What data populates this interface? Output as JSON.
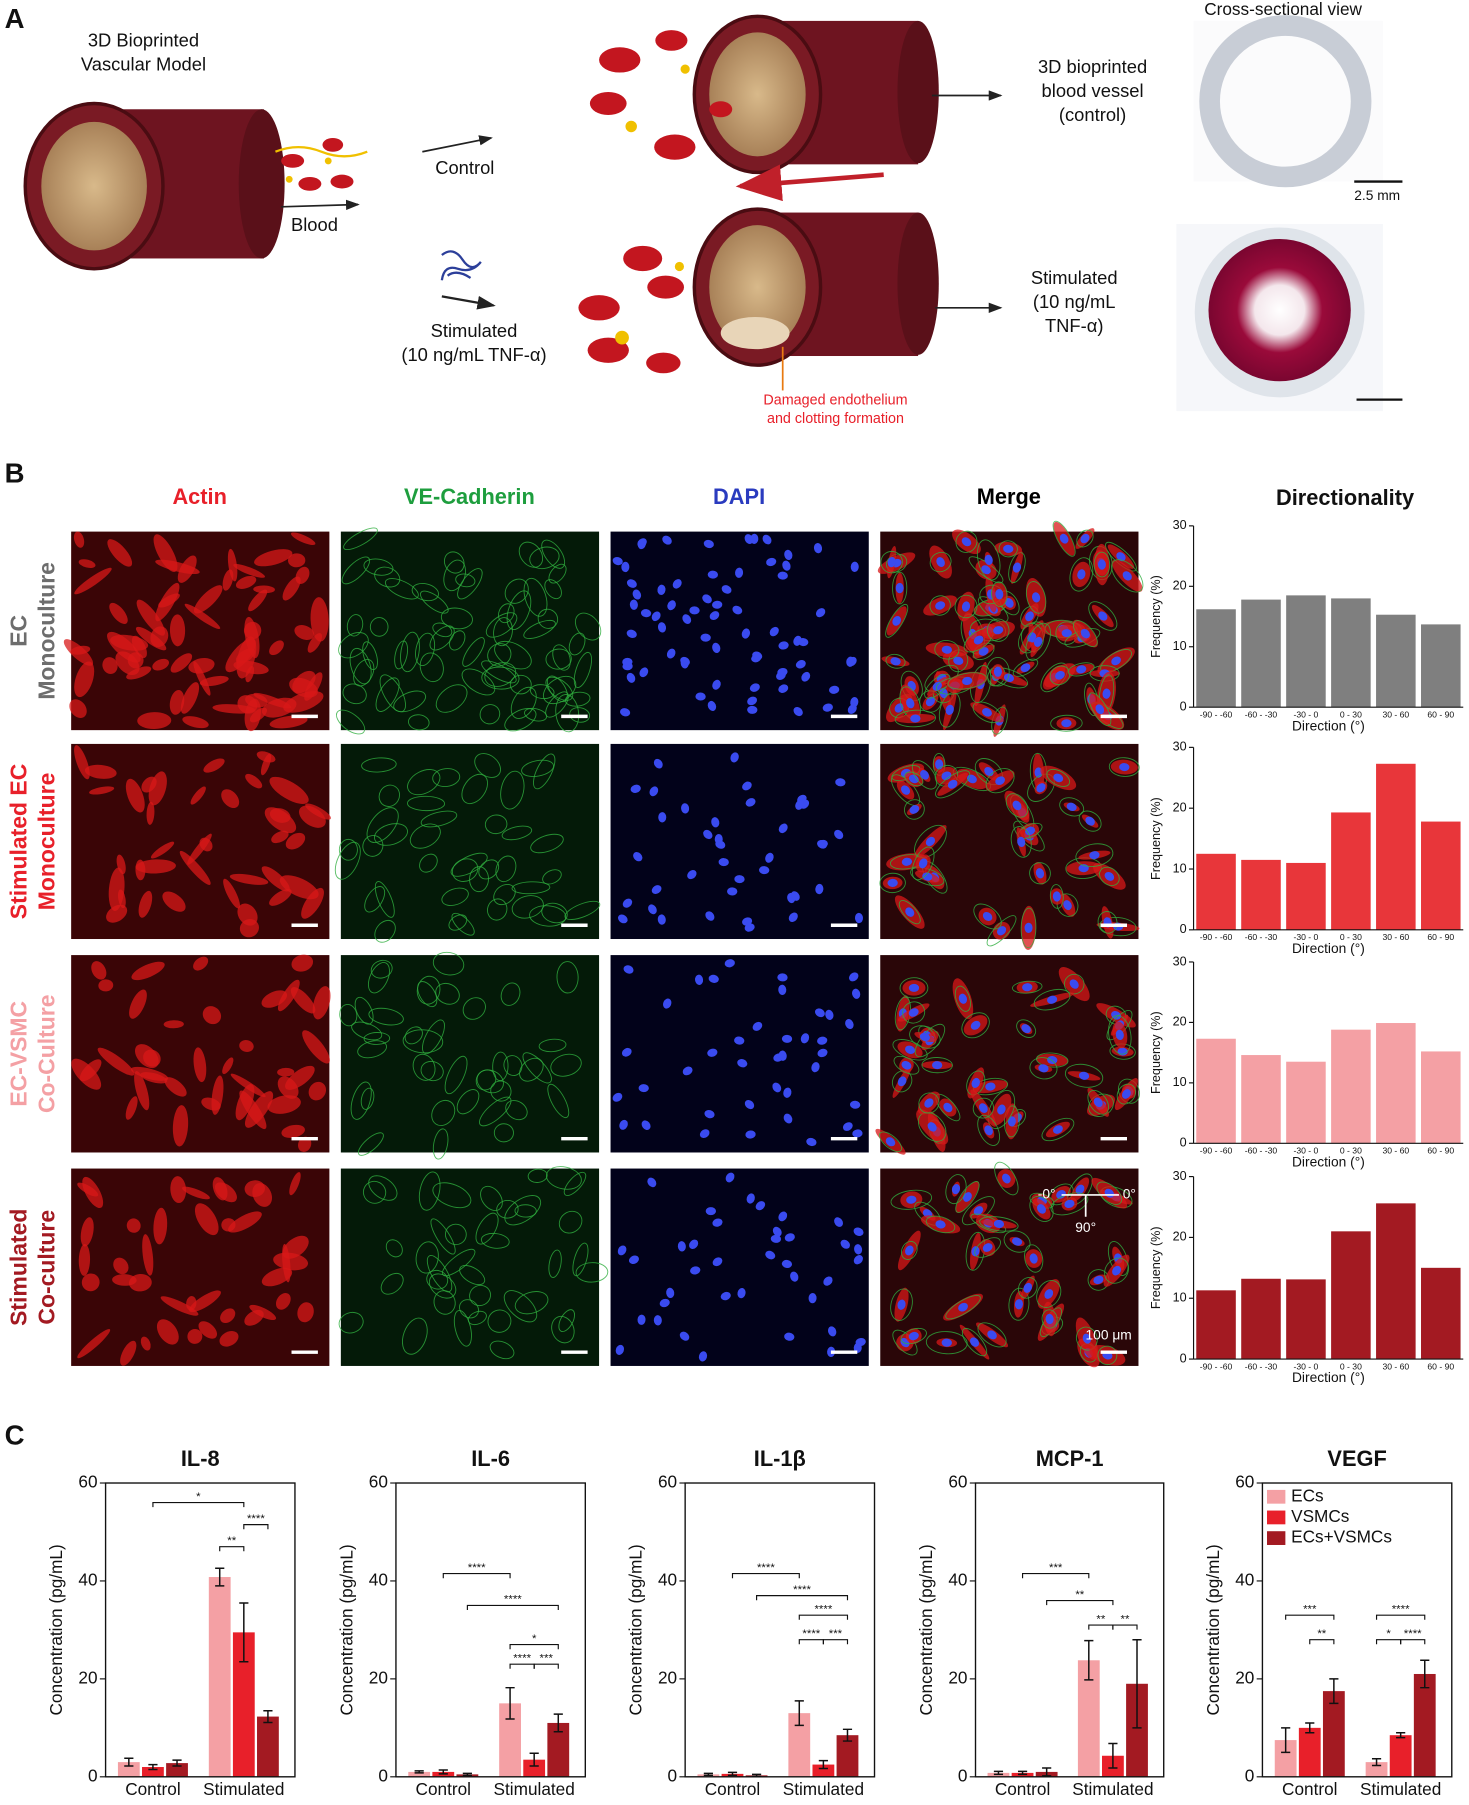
{
  "panel_a": {
    "label": "A",
    "model_title": [
      "3D Bioprinted",
      "Vascular Model"
    ],
    "blood": "Blood",
    "control": "Control",
    "stimulated": [
      "Stimulated",
      "(10 ng/mL TNF-α)"
    ],
    "control_result": [
      "3D bioprinted",
      "blood vessel",
      "(control)"
    ],
    "stimulated_result": [
      "Stimulated",
      "(10 ng/mL",
      "TNF-α)"
    ],
    "damage_note": [
      "Damaged endothelium",
      "and clotting formation"
    ],
    "cross_section_title": "Cross-sectional view",
    "scale_bar": "2.5 mm"
  },
  "panel_b": {
    "label": "B",
    "columns": [
      "Actin",
      "VE-Cadherin",
      "DAPI",
      "Merge"
    ],
    "column_colors": [
      "#e8202a",
      "#1e9e3e",
      "#2a3bbf",
      "#000000"
    ],
    "directionality_title": "Directionality",
    "rows": [
      [
        "EC",
        "Monoculture"
      ],
      [
        "Stimulated EC",
        "Monoculture"
      ],
      [
        "EC-VSMC",
        "Co-Culture"
      ],
      [
        "Stimulated",
        "Co-culture"
      ]
    ],
    "row_colors": [
      "#6d6d6d",
      "#e8202a",
      "#f4a0a4",
      "#a31a22"
    ],
    "scale_bar": "100 μm",
    "orientation": [
      "-0°",
      "0°",
      "90°"
    ]
  },
  "panel_c": {
    "label": "C"
  },
  "chart_data": [
    {
      "type": "bar",
      "categories": [
        "-90 - -60",
        "-60 - -30",
        "-30 - 0",
        "0 - 30",
        "30 - 60",
        "60 - 90"
      ],
      "values": [
        16.2,
        17.8,
        18.5,
        18.0,
        15.3,
        13.7
      ],
      "color": "#7f7f7f",
      "ylim": [
        0,
        30
      ],
      "yticks": [
        0,
        10,
        20,
        30
      ],
      "x_label": "Direction (°)",
      "y_label": "Frequency (%)"
    },
    {
      "type": "bar",
      "categories": [
        "-90 - -60",
        "-60 - -30",
        "-30 - 0",
        "0 - 30",
        "30 - 60",
        "60 - 90"
      ],
      "values": [
        12.5,
        11.5,
        11.0,
        19.3,
        27.3,
        17.8
      ],
      "color": "#e8363a",
      "ylim": [
        0,
        30
      ],
      "yticks": [
        0,
        10,
        20,
        30
      ],
      "x_label": "Direction (°)",
      "y_label": "Frequency (%)"
    },
    {
      "type": "bar",
      "categories": [
        "-90 - -60",
        "-60 - -30",
        "-30 - 0",
        "0 - 30",
        "30 - 60",
        "60 - 90"
      ],
      "values": [
        17.3,
        14.6,
        13.5,
        18.8,
        19.9,
        15.2
      ],
      "color": "#f4a0a4",
      "ylim": [
        0,
        30
      ],
      "yticks": [
        0,
        10,
        20,
        30
      ],
      "x_label": "Direction (°)",
      "y_label": "Frequency (%)"
    },
    {
      "type": "bar",
      "categories": [
        "-90 - -60",
        "-60 - -30",
        "-30 - 0",
        "0 - 30",
        "30 - 60",
        "60 - 90"
      ],
      "values": [
        11.3,
        13.2,
        13.1,
        21.0,
        25.6,
        15.0
      ],
      "color": "#a31a22",
      "ylim": [
        0,
        30
      ],
      "yticks": [
        0,
        10,
        20,
        30
      ],
      "x_label": "Direction (°)",
      "y_label": "Frequency (%)"
    },
    {
      "type": "grouped_bar",
      "title": "IL-8",
      "categories": [
        "Control",
        "Stimulated"
      ],
      "series": [
        {
          "color": "#f4a0a4",
          "values": [
            3.0,
            40.8
          ],
          "errors": [
            0.8,
            1.8
          ]
        },
        {
          "color": "#e8202a",
          "values": [
            2.0,
            29.5
          ],
          "errors": [
            0.5,
            6.0
          ]
        },
        {
          "color": "#a31a22",
          "values": [
            2.8,
            12.3
          ],
          "errors": [
            0.6,
            1.2
          ]
        }
      ],
      "ylim": [
        0,
        60
      ],
      "yticks": [
        0,
        20,
        40,
        60
      ],
      "y_label": "Concentration (pg/mL)",
      "brackets": [
        {
          "label": "*",
          "y": 56,
          "from": [
            0,
            1
          ],
          "to": [
            1,
            1
          ]
        },
        {
          "label": "****",
          "y": 51.5,
          "from": [
            1,
            1
          ],
          "to": [
            1,
            2
          ]
        },
        {
          "label": "**",
          "y": 47,
          "from": [
            1,
            0
          ],
          "to": [
            1,
            1
          ]
        }
      ]
    },
    {
      "type": "grouped_bar",
      "title": "IL-6",
      "categories": [
        "Control",
        "Stimulated"
      ],
      "series": [
        {
          "color": "#f4a0a4",
          "values": [
            1.0,
            15.0
          ],
          "errors": [
            0.2,
            3.2
          ]
        },
        {
          "color": "#e8202a",
          "values": [
            1.0,
            3.5
          ],
          "errors": [
            0.4,
            1.3
          ]
        },
        {
          "color": "#a31a22",
          "values": [
            0.5,
            11.0
          ],
          "errors": [
            0.2,
            1.8
          ]
        }
      ],
      "ylim": [
        0,
        60
      ],
      "yticks": [
        0,
        20,
        40,
        60
      ],
      "y_label": "Concentration (pg/mL)",
      "brackets": [
        {
          "label": "****",
          "y": 41.5,
          "from": [
            0,
            1
          ],
          "to": [
            1,
            0
          ]
        },
        {
          "label": "****",
          "y": 35,
          "from": [
            0,
            2
          ],
          "to": [
            1,
            2
          ]
        },
        {
          "label": "*",
          "y": 27,
          "from": [
            1,
            0
          ],
          "to": [
            1,
            2
          ]
        },
        {
          "label": "****",
          "y": 23,
          "from": [
            1,
            0
          ],
          "to": [
            1,
            1
          ]
        },
        {
          "label": "***",
          "y": 23,
          "from": [
            1,
            1
          ],
          "to": [
            1,
            2
          ]
        }
      ]
    },
    {
      "type": "grouped_bar",
      "title": "IL-1β",
      "categories": [
        "Control",
        "Stimulated"
      ],
      "series": [
        {
          "color": "#f4a0a4",
          "values": [
            0.5,
            13.0
          ],
          "errors": [
            0.2,
            2.5
          ]
        },
        {
          "color": "#e8202a",
          "values": [
            0.6,
            2.5
          ],
          "errors": [
            0.3,
            0.8
          ]
        },
        {
          "color": "#a31a22",
          "values": [
            0.3,
            8.5
          ],
          "errors": [
            0.2,
            1.2
          ]
        }
      ],
      "ylim": [
        0,
        60
      ],
      "yticks": [
        0,
        20,
        40,
        60
      ],
      "y_label": "Concentration (pg/mL)",
      "brackets": [
        {
          "label": "****",
          "y": 41.5,
          "from": [
            0,
            1
          ],
          "to": [
            1,
            0
          ]
        },
        {
          "label": "****",
          "y": 37,
          "from": [
            0,
            2
          ],
          "to": [
            1,
            2
          ]
        },
        {
          "label": "****",
          "y": 33,
          "from": [
            1,
            0
          ],
          "to": [
            1,
            2
          ]
        },
        {
          "label": "****",
          "y": 28,
          "from": [
            1,
            0
          ],
          "to": [
            1,
            1
          ]
        },
        {
          "label": "***",
          "y": 28,
          "from": [
            1,
            1
          ],
          "to": [
            1,
            2
          ]
        }
      ]
    },
    {
      "type": "grouped_bar",
      "title": "MCP-1",
      "categories": [
        "Control",
        "Stimulated"
      ],
      "series": [
        {
          "color": "#f4a0a4",
          "values": [
            0.8,
            23.8
          ],
          "errors": [
            0.3,
            4.0
          ]
        },
        {
          "color": "#e8202a",
          "values": [
            0.8,
            4.3
          ],
          "errors": [
            0.3,
            2.5
          ]
        },
        {
          "color": "#a31a22",
          "values": [
            1.0,
            19.0
          ],
          "errors": [
            0.8,
            9.0
          ]
        }
      ],
      "ylim": [
        0,
        60
      ],
      "yticks": [
        0,
        20,
        40,
        60
      ],
      "y_label": "Concentration (pg/mL)",
      "brackets": [
        {
          "label": "***",
          "y": 41.5,
          "from": [
            0,
            1
          ],
          "to": [
            1,
            0
          ]
        },
        {
          "label": "**",
          "y": 36,
          "from": [
            0,
            2
          ],
          "to": [
            1,
            1
          ]
        },
        {
          "label": "**",
          "y": 31,
          "from": [
            1,
            0
          ],
          "to": [
            1,
            1
          ]
        },
        {
          "label": "**",
          "y": 31,
          "from": [
            1,
            1
          ],
          "to": [
            1,
            2
          ]
        }
      ]
    },
    {
      "type": "grouped_bar",
      "title": "VEGF",
      "categories": [
        "Control",
        "Stimulated"
      ],
      "series": [
        {
          "name": "ECs",
          "color": "#f4a0a4",
          "values": [
            7.5,
            3.0
          ],
          "errors": [
            2.5,
            0.7
          ]
        },
        {
          "name": "VSMCs",
          "color": "#e8202a",
          "values": [
            10.0,
            8.5
          ],
          "errors": [
            1.0,
            0.5
          ]
        },
        {
          "name": "ECs+VSMCs",
          "color": "#a31a22",
          "values": [
            17.5,
            21.0
          ],
          "errors": [
            2.5,
            2.8
          ]
        }
      ],
      "ylim": [
        0,
        60
      ],
      "yticks": [
        0,
        20,
        40,
        60
      ],
      "y_label": "Concentration (pg/mL)",
      "legend": "upper left",
      "brackets": [
        {
          "label": "***",
          "y": 33,
          "from": [
            0,
            0
          ],
          "to": [
            0,
            2
          ]
        },
        {
          "label": "**",
          "y": 28,
          "from": [
            0,
            1
          ],
          "to": [
            0,
            2
          ]
        },
        {
          "label": "****",
          "y": 33,
          "from": [
            1,
            0
          ],
          "to": [
            1,
            2
          ]
        },
        {
          "label": "*",
          "y": 28,
          "from": [
            1,
            0
          ],
          "to": [
            1,
            1
          ]
        },
        {
          "label": "****",
          "y": 28,
          "from": [
            1,
            1
          ],
          "to": [
            1,
            2
          ]
        }
      ]
    }
  ]
}
